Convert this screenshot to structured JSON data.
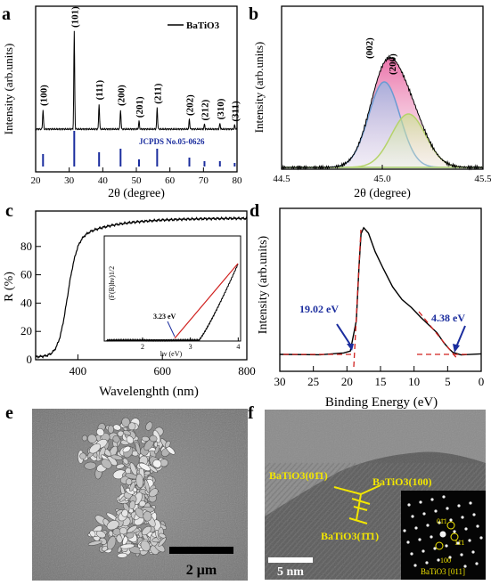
{
  "panels": [
    {
      "label": "a"
    },
    {
      "label": "b"
    },
    {
      "label": "c"
    },
    {
      "label": "d"
    },
    {
      "label": "e"
    },
    {
      "label": "f"
    }
  ],
  "chart_data": [
    {
      "type": "line",
      "panel": "a",
      "xlabel": "2θ (degree)",
      "ylabel": "Intensity (arb.units)",
      "xlim": [
        20,
        80
      ],
      "xticks": [
        "20",
        "30",
        "40",
        "50",
        "60",
        "70",
        "80"
      ],
      "legend": "BaTiO3",
      "reference_label": "JCPDS No.05-0626",
      "peaks": [
        {
          "x": 22.2,
          "h": 0.2,
          "label": "(100)"
        },
        {
          "x": 31.5,
          "h": 1.0,
          "label": "(101)"
        },
        {
          "x": 38.9,
          "h": 0.26,
          "label": "(111)"
        },
        {
          "x": 45.3,
          "h": 0.2,
          "label": "(200)"
        },
        {
          "x": 50.8,
          "h": 0.08,
          "label": "(201)"
        },
        {
          "x": 56.2,
          "h": 0.22,
          "label": "(211)"
        },
        {
          "x": 65.8,
          "h": 0.1,
          "label": "(202)"
        },
        {
          "x": 70.3,
          "h": 0.05,
          "label": "(212)"
        },
        {
          "x": 74.9,
          "h": 0.06,
          "label": "(310)"
        },
        {
          "x": 79.3,
          "h": 0.04,
          "label": "(311)"
        }
      ],
      "ref_lines": [
        [
          22.2,
          0.35
        ],
        [
          31.5,
          1.0
        ],
        [
          38.9,
          0.4
        ],
        [
          45.3,
          0.5
        ],
        [
          50.8,
          0.2
        ],
        [
          56.2,
          0.5
        ],
        [
          65.8,
          0.25
        ],
        [
          70.3,
          0.15
        ],
        [
          74.9,
          0.15
        ],
        [
          79.3,
          0.1
        ]
      ]
    },
    {
      "type": "line",
      "panel": "b",
      "xlabel": "2θ (degree)",
      "ylabel": "Intensity (arb.units)",
      "xlim": [
        44.5,
        45.5
      ],
      "xticks": [
        "44.5",
        "45.0",
        "45.5"
      ],
      "peak_labels": [
        "(002)",
        "(200)"
      ]
    },
    {
      "type": "line",
      "panel": "c",
      "xlabel": "Wavelenghth (nm)",
      "ylabel": "R (%)",
      "xlim": [
        300,
        800
      ],
      "ylim": [
        0,
        100
      ],
      "xticks": [
        "400",
        "600",
        "800"
      ],
      "yticks": [
        "0",
        "20",
        "40",
        "60",
        "80"
      ],
      "inset": {
        "xlabel": "hν (eV)",
        "ylabel": "(F(R)hν)1/2",
        "xticks": [
          "2",
          "3",
          "4"
        ],
        "annotation": "3.23 eV"
      }
    },
    {
      "type": "line",
      "panel": "d",
      "xlabel": "Binding Energy (eV)",
      "ylabel": "Intensity (arb.units)",
      "xlim": [
        30,
        0
      ],
      "xticks": [
        "30",
        "25",
        "20",
        "15",
        "10",
        "5",
        "0"
      ],
      "annotations": [
        "19.02 eV",
        "4.38 eV"
      ]
    }
  ],
  "sem": {
    "scale_label": "2 μm"
  },
  "tem": {
    "scale_label": "5 nm",
    "labels": [
      "BaTiO3(01̄1)",
      "BaTiO3(100)",
      "BaTiO3(1̄1̄1)"
    ],
    "saed": {
      "spots": [
        "01̄1",
        "11̄1",
        "100"
      ],
      "zone": "BaTiO3 [011]"
    }
  }
}
